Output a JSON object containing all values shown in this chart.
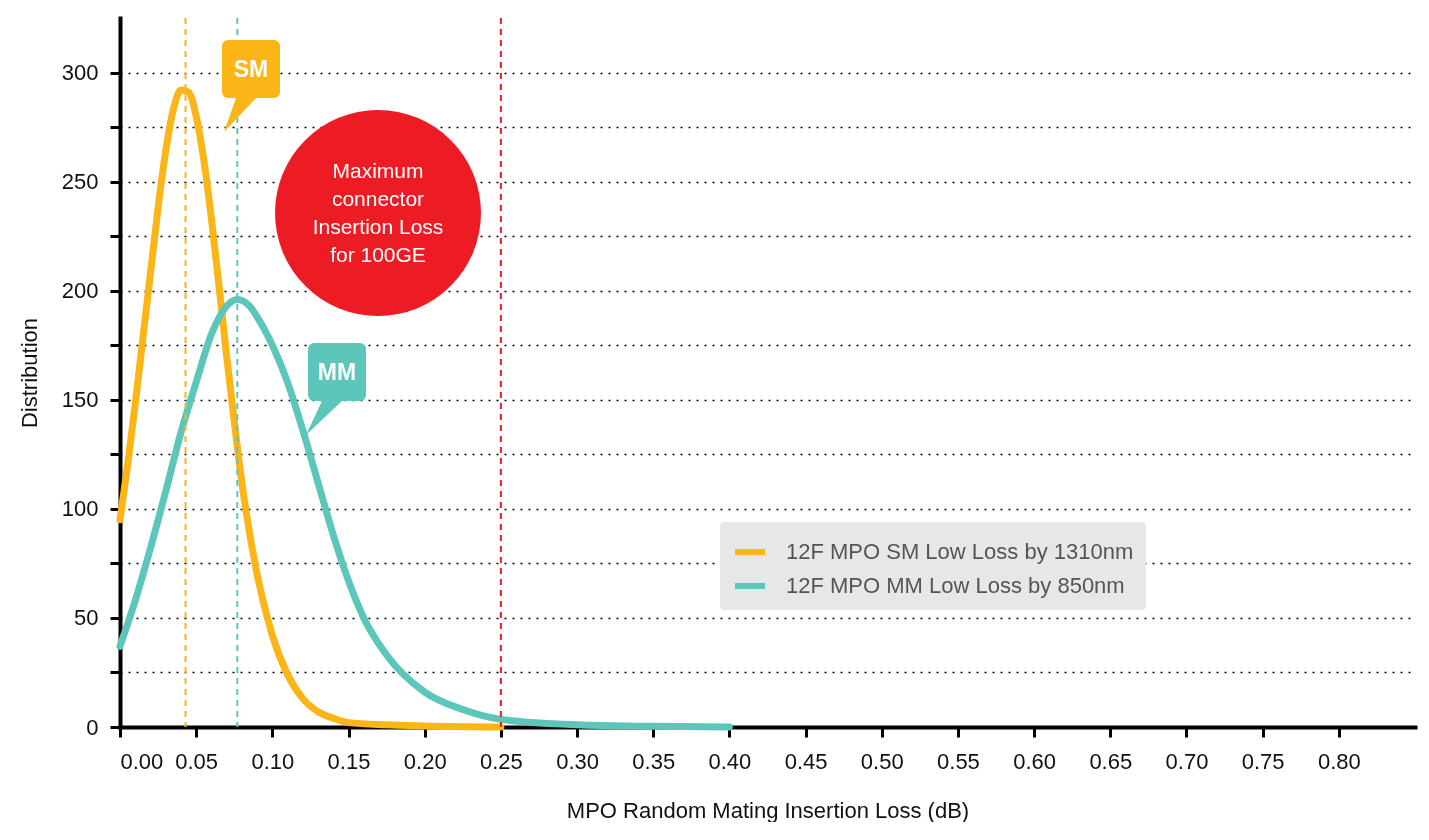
{
  "chart_data": {
    "type": "line",
    "xlabel": "MPO Random Mating Insertion Loss (dB)",
    "ylabel": "Distribution",
    "xlim": [
      0,
      0.85
    ],
    "ylim": [
      0,
      325
    ],
    "xticks": [
      {
        "value": 0,
        "label": "0.00"
      },
      {
        "value": 0.05,
        "label": "0.05"
      },
      {
        "value": 0.1,
        "label": "0.10"
      },
      {
        "value": 0.15,
        "label": "0.15"
      },
      {
        "value": 0.2,
        "label": "0.20"
      },
      {
        "value": 0.25,
        "label": "0.25"
      },
      {
        "value": 0.3,
        "label": "0.30"
      },
      {
        "value": 0.35,
        "label": "0.35"
      },
      {
        "value": 0.4,
        "label": "0.40"
      },
      {
        "value": 0.45,
        "label": "0.45"
      },
      {
        "value": 0.5,
        "label": "0.50"
      },
      {
        "value": 0.55,
        "label": "0.55"
      },
      {
        "value": 0.6,
        "label": "0.60"
      },
      {
        "value": 0.65,
        "label": "0.65"
      },
      {
        "value": 0.7,
        "label": "0.70"
      },
      {
        "value": 0.75,
        "label": "0.75"
      },
      {
        "value": 0.8,
        "label": "0.80"
      }
    ],
    "yticks": [
      0,
      {
        "value": 25,
        "label": null
      },
      50,
      {
        "value": 75,
        "label": null
      },
      100,
      {
        "value": 125,
        "label": null
      },
      150,
      {
        "value": 175,
        "label": null
      },
      200,
      {
        "value": 225,
        "label": null
      },
      250,
      {
        "value": 275,
        "label": null
      },
      300
    ],
    "grid": "y",
    "legend": "bottom right",
    "marker": "none",
    "line_style": "solid",
    "series": [
      {
        "name": "12F MPO SM Low Loss by 1310nm",
        "color": "#fbb516",
        "x": [
          0,
          0.005,
          0.01,
          0.015,
          0.02,
          0.025,
          0.03,
          0.035,
          0.04,
          0.045,
          0.05,
          0.055,
          0.06,
          0.065,
          0.07,
          0.075,
          0.08,
          0.09,
          0.1,
          0.11,
          0.12,
          0.13,
          0.14,
          0.15,
          0.175,
          0.2,
          0.25
        ],
        "values": [
          95,
          120,
          148,
          178,
          208,
          238,
          264,
          283,
          292,
          291,
          280,
          260,
          233,
          202,
          170,
          140,
          112,
          70,
          42,
          24,
          13,
          7,
          4,
          2,
          1,
          0.5,
          0
        ]
      },
      {
        "name": "12F MPO MM Low Loss by 850nm",
        "color": "#5cc6bb",
        "x": [
          0,
          0.01,
          0.02,
          0.03,
          0.04,
          0.05,
          0.06,
          0.07,
          0.077,
          0.085,
          0.09,
          0.1,
          0.11,
          0.12,
          0.13,
          0.14,
          0.15,
          0.16,
          0.175,
          0.2,
          0.225,
          0.25,
          0.3,
          0.35,
          0.4
        ],
        "values": [
          37,
          58,
          82,
          108,
          135,
          158,
          180,
          193,
          196,
          193,
          188,
          175,
          158,
          136,
          112,
          88,
          67,
          50,
          33,
          16,
          8,
          3.5,
          1,
          0.3,
          0
        ]
      }
    ],
    "ref_lines": [
      {
        "axis": "x",
        "value": 0.25,
        "color": "#ed1c24",
        "line_style": "dashed"
      },
      {
        "axis": "x",
        "value": 0.043,
        "color": "#fbb516",
        "line_style": "dashed"
      },
      {
        "axis": "x",
        "value": 0.077,
        "color": "#5cc6bb",
        "line_style": "dashed"
      }
    ],
    "annotations": [
      "SM",
      "MM",
      "Maximum\nconnector\nInsertion Loss\nfor 100GE"
    ]
  }
}
